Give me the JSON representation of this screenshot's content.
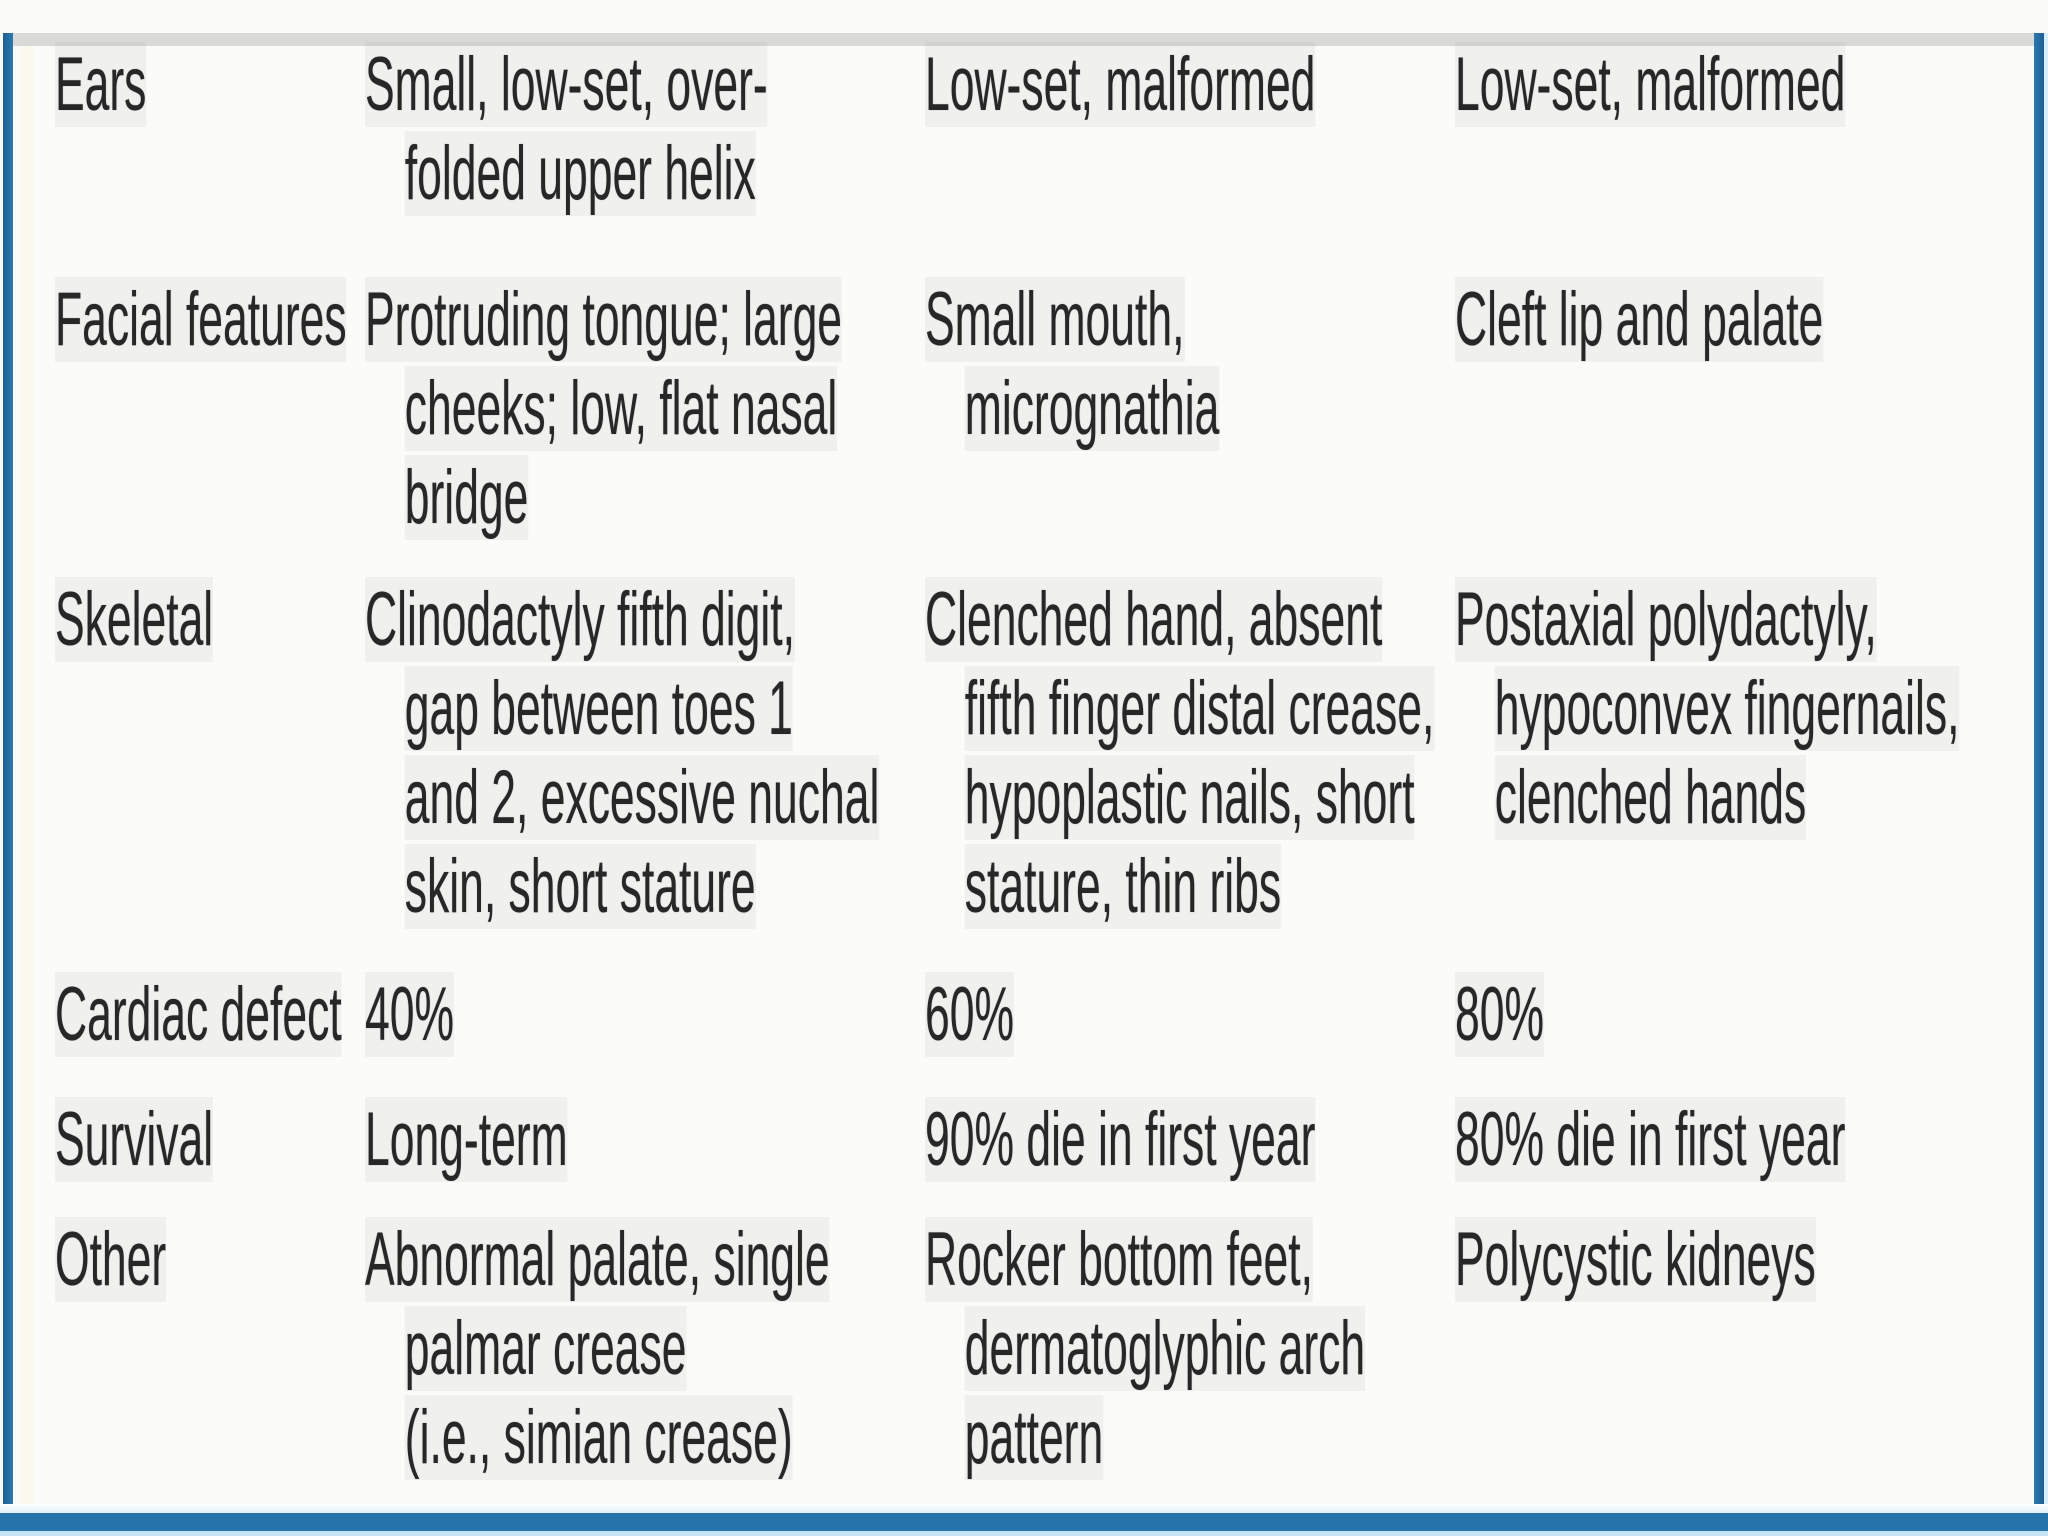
{
  "colors": {
    "frame_blue": "#1d5f93",
    "bottom_bar_blue": "#2573aa",
    "bottom_bar_light": "#c4e4f4",
    "top_strip_gray": "#d9d9d7",
    "text": "#272727",
    "page_background": "#fbfbfa"
  },
  "table": {
    "rows": [
      {
        "label": "Ears",
        "cells": [
          "Small, low-set, over-\nfolded upper helix",
          "Low-set, malformed",
          "Low-set, malformed"
        ]
      },
      {
        "label": "Facial features",
        "cells": [
          "Protruding tongue; large\ncheeks; low, flat nasal\nbridge",
          "Small mouth,\nmicrognathia",
          "Cleft lip and palate"
        ]
      },
      {
        "label": "Skeletal",
        "cells": [
          "Clinodactyly fifth digit,\ngap between toes 1\nand 2, excessive nuchal\nskin, short stature",
          "Clenched hand, absent\nfifth finger distal crease,\nhypoplastic nails, short\nstature, thin ribs",
          "Postaxial polydactyly,\nhypoconvex fingernails,\nclenched hands"
        ]
      },
      {
        "label": "Cardiac defect",
        "cells": [
          "40%",
          "60%",
          "80%"
        ]
      },
      {
        "label": "Survival",
        "cells": [
          "Long-term",
          "90% die in first year",
          "80% die in first year"
        ]
      },
      {
        "label": "Other",
        "cells": [
          "Abnormal palate, single\npalmar crease\n(i.e., simian crease)",
          "Rocker bottom feet,\ndermatoglyphic arch\npattern",
          "Polycystic kidneys"
        ]
      }
    ]
  }
}
